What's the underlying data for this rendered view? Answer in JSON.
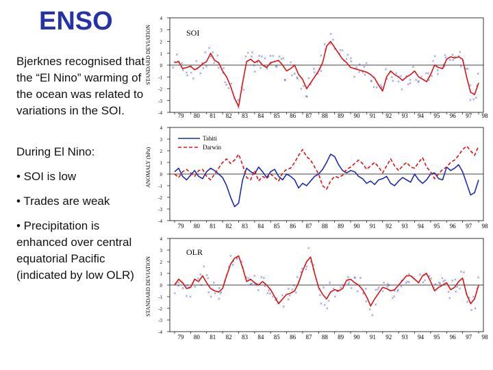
{
  "slide": {
    "title": "ENSO",
    "paragraph1": "Bjerknes recognised that the “El Nino” warming of the ocean was related to variations in the SOI.",
    "paragraph2": "During El Nino:",
    "bullets": [
      "• SOI is low",
      "• Trades are weak",
      "• Precipitation is enhanced over central equatorial Pacific (indicated by low OLR)"
    ]
  },
  "chart_data": [
    {
      "type": "line",
      "panel_label": "SOI",
      "ylabel": "STANDARD DEVIATION",
      "ylim": [
        -4,
        4
      ],
      "yticks": [
        "4",
        "3",
        "2",
        "1",
        "0",
        "-1",
        "-2",
        "-3",
        "-4"
      ],
      "xticks": [
        "79",
        "80",
        "81",
        "82",
        "83",
        "84",
        "85",
        "86",
        "87",
        "88",
        "89",
        "90",
        "91",
        "92",
        "93",
        "94",
        "95",
        "96",
        "97",
        "98"
      ],
      "series": [
        {
          "name": "SOI smoothed",
          "color": "#e01010",
          "x": [
            1979.0,
            1979.25,
            1979.5,
            1979.75,
            1980.0,
            1980.25,
            1980.5,
            1980.75,
            1981.0,
            1981.25,
            1981.5,
            1981.75,
            1982.0,
            1982.25,
            1982.5,
            1982.75,
            1983.0,
            1983.25,
            1983.5,
            1983.75,
            1984.0,
            1984.25,
            1984.5,
            1984.75,
            1985.0,
            1985.25,
            1985.5,
            1985.75,
            1986.0,
            1986.25,
            1986.5,
            1986.75,
            1987.0,
            1987.25,
            1987.5,
            1987.75,
            1988.0,
            1988.25,
            1988.5,
            1988.75,
            1989.0,
            1989.25,
            1989.5,
            1989.75,
            1990.0,
            1990.25,
            1990.5,
            1990.75,
            1991.0,
            1991.25,
            1991.5,
            1991.75,
            1992.0,
            1992.25,
            1992.5,
            1992.75,
            1993.0,
            1993.25,
            1993.5,
            1993.75,
            1994.0,
            1994.25,
            1994.5,
            1994.75,
            1995.0,
            1995.25,
            1995.5,
            1995.75,
            1996.0,
            1996.25,
            1996.5,
            1996.75,
            1997.0,
            1997.25,
            1997.5,
            1997.75,
            1998.0
          ],
          "y": [
            0.2,
            0.3,
            -0.3,
            -0.2,
            -0.1,
            -0.4,
            -0.2,
            0.1,
            0.3,
            1.0,
            0.4,
            0.2,
            -0.5,
            -1.0,
            -1.8,
            -2.8,
            -3.5,
            -1.5,
            0.3,
            0.5,
            0.2,
            0.4,
            0.0,
            -0.2,
            0.2,
            0.3,
            0.4,
            0.0,
            -0.5,
            -0.3,
            0.0,
            -0.8,
            -1.2,
            -2.0,
            -1.5,
            -1.0,
            -0.5,
            0.2,
            1.6,
            2.0,
            1.5,
            1.0,
            0.5,
            0.2,
            -0.2,
            -0.3,
            -0.4,
            -0.5,
            -0.6,
            -0.8,
            -1.1,
            -1.7,
            -2.2,
            -1.0,
            -0.5,
            -0.8,
            -1.0,
            -1.3,
            -1.0,
            -0.8,
            -0.5,
            -1.0,
            -1.2,
            -1.4,
            -0.8,
            0.0,
            -0.2,
            -0.3,
            0.5,
            0.7,
            0.6,
            0.7,
            0.5,
            -1.0,
            -2.3,
            -2.5,
            -1.5
          ]
        }
      ],
      "scatter_marker": "×",
      "scatter_color": "#2233bb"
    },
    {
      "type": "line",
      "ylabel": "ANOMALY (hPa)",
      "ylim": [
        -4,
        4
      ],
      "yticks": [
        "4",
        "3",
        "2",
        "1",
        "0",
        "-1",
        "-2",
        "-3",
        "-4"
      ],
      "xticks": [
        "79",
        "80",
        "81",
        "82",
        "83",
        "84",
        "85",
        "86",
        "87",
        "88",
        "89",
        "90",
        "91",
        "92",
        "93",
        "94",
        "95",
        "96",
        "97",
        "98"
      ],
      "legend": [
        {
          "name": "Tahiti",
          "color": "#1a2ab8",
          "style": "solid"
        },
        {
          "name": "Darwin",
          "color": "#e01010",
          "style": "dashed"
        }
      ],
      "series": [
        {
          "name": "Tahiti",
          "color": "#1a2ab8",
          "x": [
            1979.0,
            1979.25,
            1979.5,
            1979.75,
            1980.0,
            1980.25,
            1980.5,
            1980.75,
            1981.0,
            1981.25,
            1981.5,
            1981.75,
            1982.0,
            1982.25,
            1982.5,
            1982.75,
            1983.0,
            1983.25,
            1983.5,
            1983.75,
            1984.0,
            1984.25,
            1984.5,
            1984.75,
            1985.0,
            1985.25,
            1985.5,
            1985.75,
            1986.0,
            1986.25,
            1986.5,
            1986.75,
            1987.0,
            1987.25,
            1987.5,
            1987.75,
            1988.0,
            1988.25,
            1988.5,
            1988.75,
            1989.0,
            1989.25,
            1989.5,
            1989.75,
            1990.0,
            1990.25,
            1990.5,
            1990.75,
            1991.0,
            1991.25,
            1991.5,
            1991.75,
            1992.0,
            1992.25,
            1992.5,
            1992.75,
            1993.0,
            1993.25,
            1993.5,
            1993.75,
            1994.0,
            1994.25,
            1994.5,
            1994.75,
            1995.0,
            1995.25,
            1995.5,
            1995.75,
            1996.0,
            1996.25,
            1996.5,
            1996.75,
            1997.0,
            1997.25,
            1997.5,
            1997.75,
            1998.0
          ],
          "y": [
            0.2,
            0.5,
            -0.2,
            -0.5,
            -0.1,
            0.3,
            -0.2,
            -0.4,
            0.2,
            0.5,
            0.3,
            0.0,
            -0.3,
            -1.0,
            -2.0,
            -2.8,
            -2.5,
            -0.5,
            0.5,
            0.2,
            0.0,
            0.6,
            0.2,
            -0.3,
            0.2,
            0.4,
            -0.2,
            -0.5,
            0.0,
            -0.2,
            -0.5,
            -1.2,
            -0.8,
            -1.0,
            -0.6,
            -0.2,
            0.0,
            0.4,
            1.0,
            1.7,
            1.5,
            0.8,
            0.3,
            0.1,
            0.3,
            0.2,
            -0.2,
            -0.4,
            -0.8,
            -0.6,
            -0.9,
            -0.5,
            -0.4,
            -0.2,
            -0.8,
            -1.0,
            -0.6,
            -0.3,
            -0.5,
            -0.7,
            0.0,
            -0.5,
            -0.8,
            -0.5,
            0.0,
            0.1,
            -0.4,
            -0.5,
            0.6,
            0.3,
            0.5,
            0.8,
            0.2,
            -0.8,
            -1.8,
            -1.6,
            -0.5
          ]
        },
        {
          "name": "Darwin",
          "color": "#e01010",
          "x": [
            1979.0,
            1979.25,
            1979.5,
            1979.75,
            1980.0,
            1980.25,
            1980.5,
            1980.75,
            1981.0,
            1981.25,
            1981.5,
            1981.75,
            1982.0,
            1982.25,
            1982.5,
            1982.75,
            1983.0,
            1983.25,
            1983.5,
            1983.75,
            1984.0,
            1984.25,
            1984.5,
            1984.75,
            1985.0,
            1985.25,
            1985.5,
            1985.75,
            1986.0,
            1986.25,
            1986.5,
            1986.75,
            1987.0,
            1987.25,
            1987.5,
            1987.75,
            1988.0,
            1988.25,
            1988.5,
            1988.75,
            1989.0,
            1989.25,
            1989.5,
            1989.75,
            1990.0,
            1990.25,
            1990.5,
            1990.75,
            1991.0,
            1991.25,
            1991.5,
            1991.75,
            1992.0,
            1992.25,
            1992.5,
            1992.75,
            1993.0,
            1993.25,
            1993.5,
            1993.75,
            1994.0,
            1994.25,
            1994.5,
            1994.75,
            1995.0,
            1995.25,
            1995.5,
            1995.75,
            1996.0,
            1996.25,
            1996.5,
            1996.75,
            1997.0,
            1997.25,
            1997.5,
            1997.75,
            1998.0
          ],
          "y": [
            0.0,
            -0.3,
            0.2,
            0.4,
            0.1,
            -0.2,
            0.3,
            0.4,
            -0.2,
            -0.5,
            0.0,
            0.5,
            1.0,
            1.3,
            0.9,
            1.2,
            1.7,
            0.8,
            -0.3,
            -0.5,
            0.3,
            -0.6,
            -0.2,
            -0.4,
            0.0,
            -0.3,
            -0.6,
            0.1,
            0.4,
            0.5,
            1.0,
            1.6,
            2.1,
            1.5,
            1.2,
            0.6,
            0.0,
            -1.0,
            -1.3,
            -0.6,
            -0.2,
            -0.3,
            -0.1,
            0.4,
            0.6,
            0.9,
            1.2,
            0.9,
            0.4,
            0.7,
            1.0,
            0.6,
            0.1,
            0.7,
            1.3,
            0.7,
            0.3,
            0.7,
            1.0,
            0.6,
            0.5,
            1.0,
            1.4,
            0.6,
            0.2,
            -0.4,
            0.0,
            0.4,
            0.6,
            1.0,
            1.2,
            1.6,
            2.1,
            2.4,
            2.0,
            1.6,
            2.4
          ]
        }
      ]
    },
    {
      "type": "line",
      "panel_label": "OLR",
      "ylabel": "STANDARD DEVIATION",
      "ylim": [
        -4,
        4
      ],
      "yticks": [
        "4",
        "3",
        "2",
        "1",
        "0",
        "-1",
        "-2",
        "-3",
        "-4"
      ],
      "xticks": [
        "79",
        "80",
        "81",
        "82",
        "83",
        "84",
        "85",
        "86",
        "87",
        "88",
        "89",
        "90",
        "91",
        "92",
        "93",
        "94",
        "95",
        "96",
        "97",
        "98"
      ],
      "series": [
        {
          "name": "OLR smoothed",
          "color": "#e01010",
          "x": [
            1979.0,
            1979.25,
            1979.5,
            1979.75,
            1980.0,
            1980.25,
            1980.5,
            1980.75,
            1981.0,
            1981.25,
            1981.5,
            1981.75,
            1982.0,
            1982.25,
            1982.5,
            1982.75,
            1983.0,
            1983.25,
            1983.5,
            1983.75,
            1984.0,
            1984.25,
            1984.5,
            1984.75,
            1985.0,
            1985.25,
            1985.5,
            1985.75,
            1986.0,
            1986.25,
            1986.5,
            1986.75,
            1987.0,
            1987.25,
            1987.5,
            1987.75,
            1988.0,
            1988.25,
            1988.5,
            1988.75,
            1989.0,
            1989.25,
            1989.5,
            1989.75,
            1990.0,
            1990.25,
            1990.5,
            1990.75,
            1991.0,
            1991.25,
            1991.5,
            1991.75,
            1992.0,
            1992.25,
            1992.5,
            1992.75,
            1993.0,
            1993.25,
            1993.5,
            1993.75,
            1994.0,
            1994.25,
            1994.5,
            1994.75,
            1995.0,
            1995.25,
            1995.5,
            1995.75,
            1996.0,
            1996.25,
            1996.5,
            1996.75,
            1997.0,
            1997.25,
            1997.5,
            1997.75,
            1998.0
          ],
          "y": [
            0.0,
            0.5,
            0.2,
            -0.3,
            -0.2,
            0.5,
            0.3,
            0.8,
            0.2,
            -0.3,
            -0.5,
            -0.6,
            -0.3,
            0.8,
            1.8,
            2.3,
            2.5,
            1.5,
            0.3,
            0.5,
            0.2,
            0.0,
            0.3,
            0.0,
            -0.4,
            -1.0,
            -1.6,
            -1.2,
            -0.8,
            -0.7,
            -0.5,
            0.2,
            1.2,
            2.0,
            2.4,
            1.0,
            -0.2,
            -0.8,
            -1.2,
            -0.6,
            -0.4,
            -0.5,
            -0.3,
            0.4,
            0.5,
            0.2,
            0.0,
            -0.4,
            -1.0,
            -1.8,
            -1.2,
            -0.7,
            -0.2,
            -0.3,
            -0.5,
            -0.4,
            0.0,
            0.4,
            0.8,
            0.8,
            0.5,
            0.2,
            0.8,
            1.0,
            0.3,
            -0.5,
            -0.2,
            0.0,
            0.2,
            -0.4,
            -0.2,
            0.3,
            0.6,
            -0.8,
            -1.6,
            -1.2,
            0.0
          ]
        }
      ],
      "scatter_marker": "×",
      "scatter_color": "#2233bb"
    }
  ]
}
